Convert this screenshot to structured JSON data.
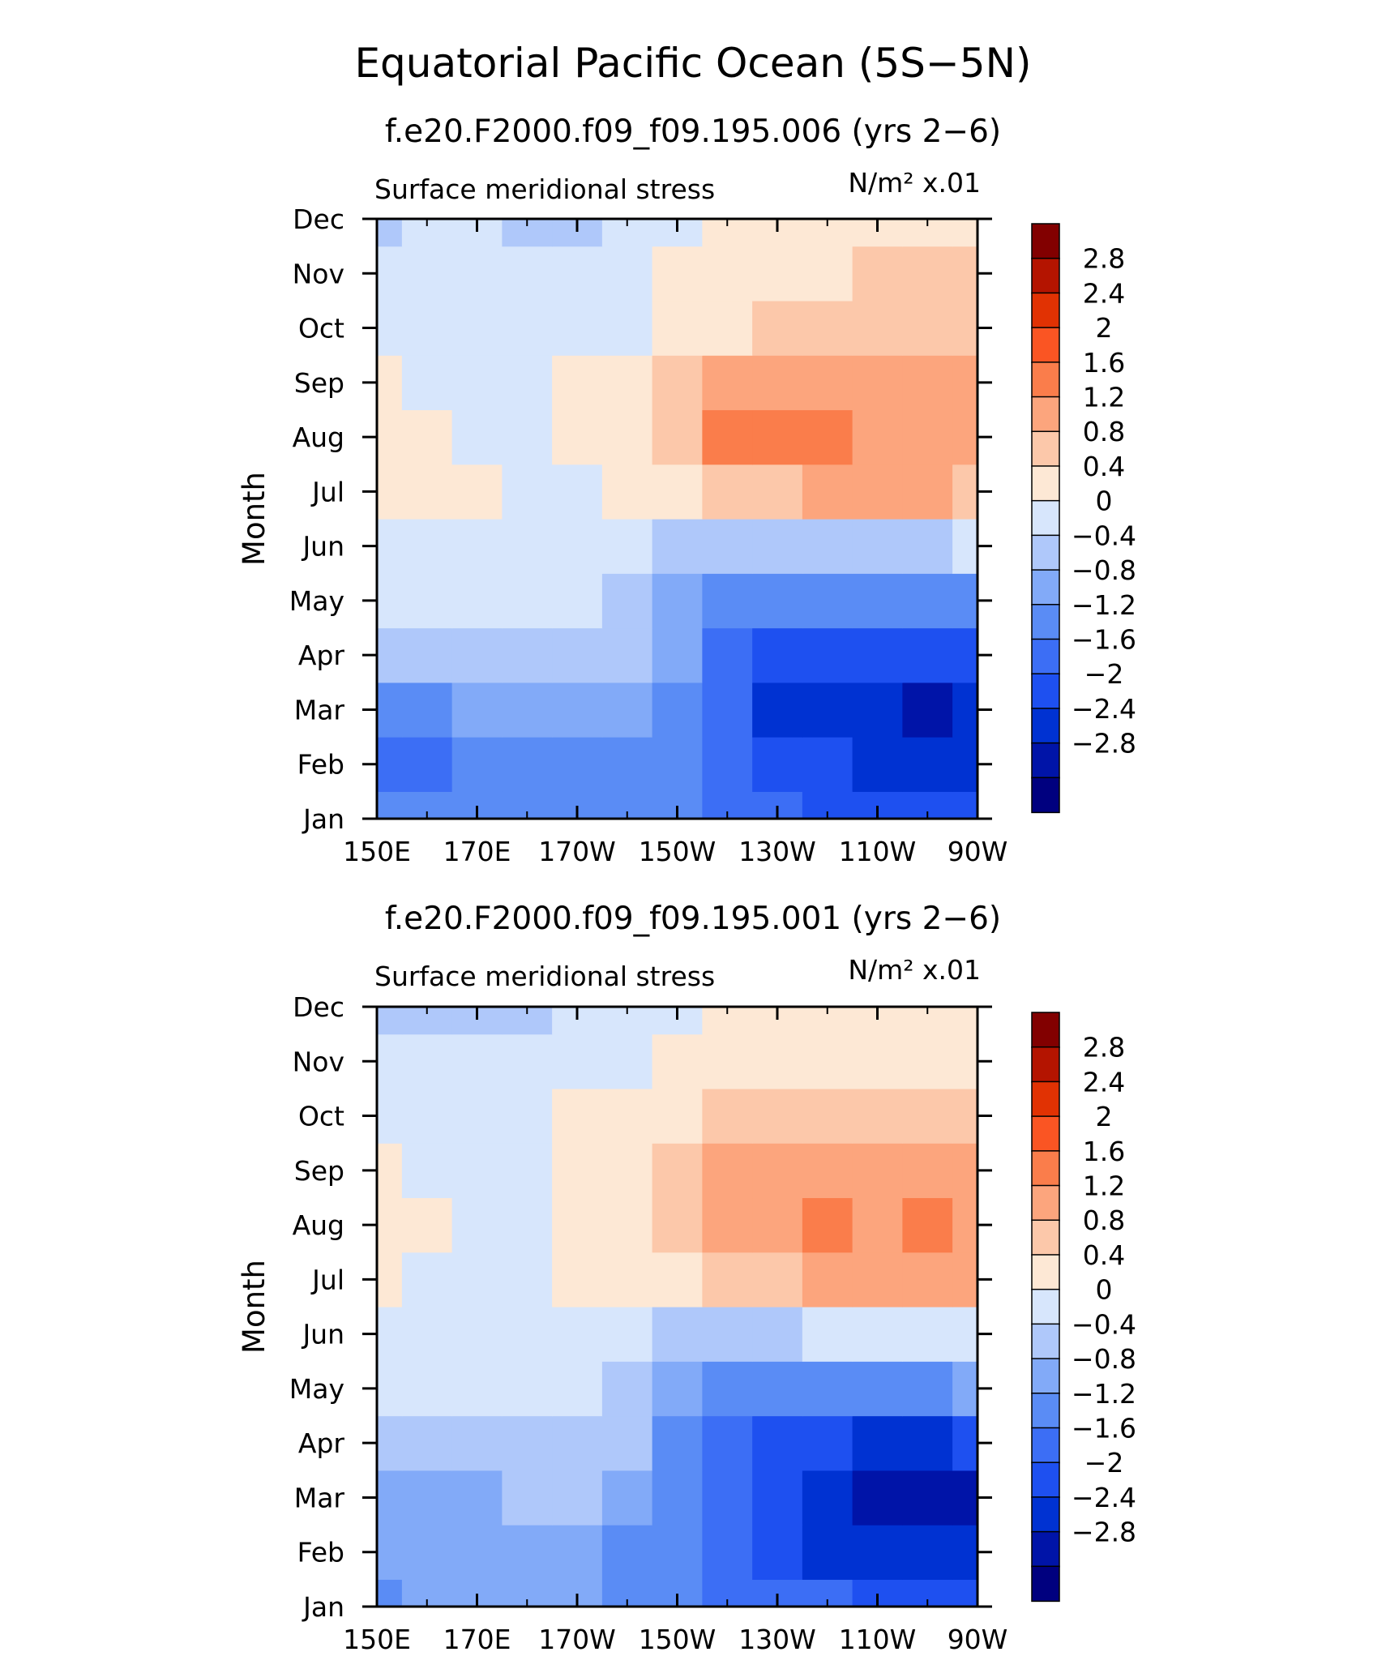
{
  "title": "Equatorial Pacific Ocean (5S−5N)",
  "colors": [
    "#00007f",
    "#0014a8",
    "#0032d2",
    "#1e50f0",
    "#3c6ef5",
    "#5a8cf5",
    "#82aaf8",
    "#afc8fa",
    "#d7e6fc",
    "#fde8d5",
    "#fcc8aa",
    "#fca57d",
    "#fa7d4b",
    "#fa5523",
    "#e13203",
    "#b41400",
    "#820000"
  ],
  "colorbar_labels": [
    "2.8",
    "2.4",
    "2",
    "1.6",
    "1.2",
    "0.8",
    "0.4",
    "0",
    "−0.4",
    "−0.8",
    "−1.2",
    "−1.6",
    "−2",
    "−2.4",
    "−2.8"
  ],
  "x_ticks": [
    "150E",
    "170E",
    "170W",
    "150W",
    "130W",
    "110W",
    "90W"
  ],
  "months": [
    "Jan",
    "Feb",
    "Mar",
    "Apr",
    "May",
    "Jun",
    "Jul",
    "Aug",
    "Sep",
    "Oct",
    "Nov",
    "Dec"
  ],
  "chart_data": [
    {
      "type": "heatmap",
      "title": "f.e20.F2000.f09_f09.195.006 (yrs 2−6)",
      "subtitle_left": "Surface meridional stress",
      "units": "N/m² x.01",
      "ylabel": "Month",
      "xlabel": "",
      "x": [
        "150E",
        "160E",
        "170E",
        "180",
        "170W",
        "160W",
        "150W",
        "140W",
        "130W",
        "120W",
        "110W",
        "100W",
        "90W"
      ],
      "y": [
        "Jan",
        "Feb",
        "Mar",
        "Apr",
        "May",
        "Jun",
        "Jul",
        "Aug",
        "Sep",
        "Oct",
        "Nov",
        "Dec"
      ],
      "levels": [
        -2.8,
        -2.4,
        -2.0,
        -1.6,
        -1.2,
        -0.8,
        -0.4,
        0,
        0.4,
        0.8,
        1.2,
        1.6,
        2.0,
        2.4,
        2.8
      ],
      "z": [
        [
          -1.0,
          -1.1,
          -1.0,
          -1.0,
          -0.9,
          -0.9,
          -1.1,
          -1.3,
          -1.5,
          -1.7,
          -1.8,
          -1.9,
          -1.9
        ],
        [
          -1.5,
          -1.3,
          -1.1,
          -1.0,
          -1.0,
          -1.0,
          -1.0,
          -1.6,
          -1.8,
          -2.0,
          -2.2,
          -2.2,
          -2.2
        ],
        [
          -0.9,
          -0.9,
          -0.8,
          -0.8,
          -0.6,
          -0.5,
          -0.9,
          -1.4,
          -2.1,
          -2.3,
          -2.4,
          -2.5,
          -2.4
        ],
        [
          -0.3,
          -0.3,
          -0.3,
          -0.2,
          -0.2,
          -0.4,
          -0.8,
          -1.3,
          -1.7,
          -1.9,
          -2.0,
          -2.0,
          -1.9
        ],
        [
          0.2,
          0.2,
          0.2,
          0.2,
          0.1,
          -0.2,
          -0.5,
          -0.9,
          -1.1,
          -1.2,
          -1.1,
          -1.0,
          -0.9
        ],
        [
          0.3,
          0.3,
          0.3,
          0.3,
          0.3,
          0.1,
          -0.1,
          -0.3,
          -0.3,
          -0.3,
          -0.2,
          -0.1,
          0.0
        ],
        [
          0.5,
          0.5,
          0.4,
          0.3,
          0.3,
          0.4,
          0.6,
          0.9,
          1.1,
          1.2,
          1.2,
          1.2,
          1.1
        ],
        [
          0.6,
          0.5,
          0.3,
          0.3,
          0.4,
          0.6,
          1.0,
          1.6,
          1.9,
          1.6,
          1.4,
          1.3,
          1.3
        ],
        [
          0.5,
          0.3,
          0.2,
          0.3,
          0.4,
          0.6,
          1.0,
          1.3,
          1.4,
          1.4,
          1.3,
          1.3,
          1.3
        ],
        [
          0.2,
          0.2,
          0.2,
          0.2,
          0.3,
          0.3,
          0.5,
          0.7,
          0.8,
          0.9,
          0.8,
          0.9,
          1.0
        ],
        [
          0.1,
          0.1,
          0.1,
          0.1,
          0.2,
          0.2,
          0.4,
          0.6,
          0.7,
          0.7,
          0.8,
          0.8,
          0.8
        ],
        [
          -0.1,
          0.0,
          0.0,
          -0.1,
          -0.1,
          0.1,
          0.3,
          0.5,
          0.6,
          0.6,
          0.5,
          0.5,
          0.5
        ]
      ]
    },
    {
      "type": "heatmap",
      "title": "f.e20.F2000.f09_f09.195.001 (yrs 2−6)",
      "subtitle_left": "Surface meridional stress",
      "units": "N/m² x.01",
      "ylabel": "Month",
      "xlabel": "",
      "x": [
        "150E",
        "160E",
        "170E",
        "180",
        "170W",
        "160W",
        "150W",
        "140W",
        "130W",
        "120W",
        "110W",
        "100W",
        "90W"
      ],
      "y": [
        "Jan",
        "Feb",
        "Mar",
        "Apr",
        "May",
        "Jun",
        "Jul",
        "Aug",
        "Sep",
        "Oct",
        "Nov",
        "Dec"
      ],
      "levels": [
        -2.8,
        -2.4,
        -2.0,
        -1.6,
        -1.2,
        -0.8,
        -0.4,
        0,
        0.4,
        0.8,
        1.2,
        1.6,
        2.0,
        2.4,
        2.8
      ],
      "z": [
        [
          -0.9,
          -0.7,
          -0.7,
          -0.7,
          -0.8,
          -0.9,
          -1.0,
          -1.3,
          -1.5,
          -1.6,
          -1.7,
          -1.8,
          -1.8
        ],
        [
          -0.7,
          -0.7,
          -0.7,
          -0.6,
          -0.6,
          -0.9,
          -1.1,
          -1.6,
          -1.9,
          -2.1,
          -2.2,
          -2.3,
          -2.4
        ],
        [
          -0.5,
          -0.5,
          -0.5,
          -0.4,
          -0.3,
          -0.6,
          -1.0,
          -1.4,
          -2.0,
          -2.3,
          -2.5,
          -2.6,
          -2.5
        ],
        [
          -0.2,
          -0.2,
          -0.2,
          -0.1,
          -0.1,
          -0.4,
          -0.9,
          -1.4,
          -1.8,
          -2.0,
          -2.1,
          -2.1,
          -2.0
        ],
        [
          0.2,
          0.2,
          0.2,
          0.1,
          0.0,
          -0.3,
          -0.6,
          -0.9,
          -1.0,
          -1.1,
          -1.0,
          -0.9,
          -0.7
        ],
        [
          0.3,
          0.3,
          0.3,
          0.2,
          0.1,
          0.0,
          -0.2,
          -0.2,
          -0.1,
          0.1,
          0.3,
          0.3,
          0.3
        ],
        [
          0.5,
          0.3,
          0.3,
          0.3,
          0.4,
          0.5,
          0.7,
          0.8,
          1.0,
          1.2,
          1.3,
          1.3,
          1.2
        ],
        [
          0.6,
          0.4,
          0.3,
          0.3,
          0.5,
          0.7,
          1.0,
          1.3,
          1.5,
          1.6,
          1.5,
          1.6,
          1.5
        ],
        [
          0.4,
          0.3,
          0.3,
          0.3,
          0.4,
          0.6,
          1.0,
          1.2,
          1.3,
          1.3,
          1.3,
          1.3,
          1.3
        ],
        [
          0.2,
          0.2,
          0.2,
          0.2,
          0.4,
          0.5,
          0.7,
          0.8,
          0.9,
          0.9,
          0.9,
          0.9,
          0.8
        ],
        [
          0.1,
          0.1,
          0.1,
          0.2,
          0.2,
          0.3,
          0.4,
          0.5,
          0.5,
          0.6,
          0.6,
          0.6,
          0.5
        ],
        [
          -0.1,
          -0.1,
          -0.1,
          -0.1,
          0.1,
          0.2,
          0.3,
          0.4,
          0.4,
          0.4,
          0.4,
          0.4,
          0.4
        ]
      ]
    }
  ]
}
